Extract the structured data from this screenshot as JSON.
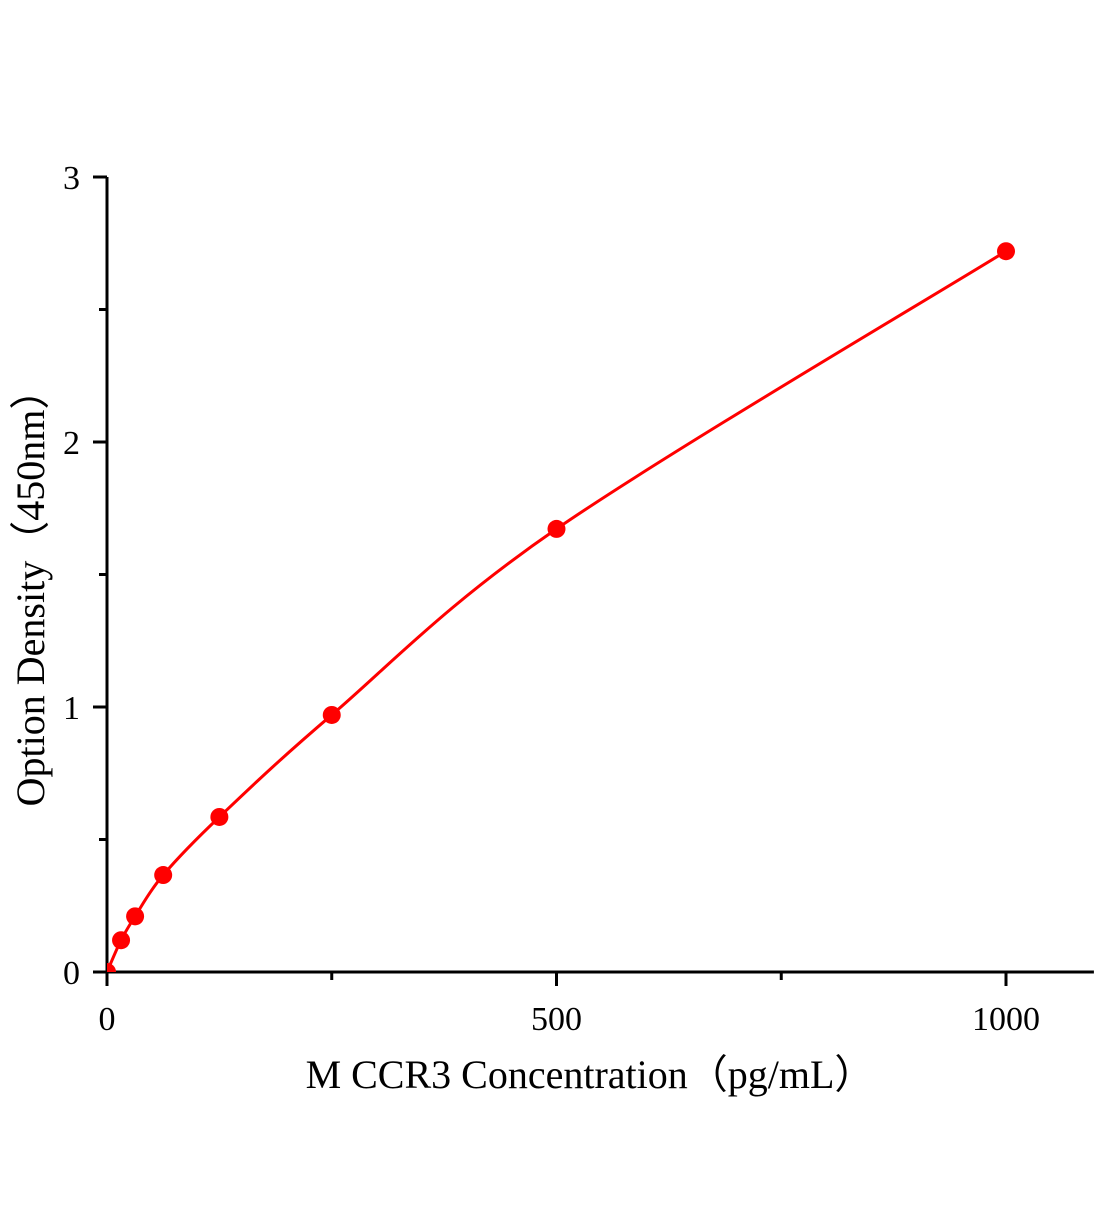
{
  "chart_data": {
    "type": "scatter",
    "title": "",
    "xlabel": "M CCR3 Concentration（pg/mL）",
    "ylabel": "Option Density（450nm）",
    "xlim": [
      0,
      1100
    ],
    "ylim": [
      0,
      3
    ],
    "x_ticks": [
      0,
      500,
      1000
    ],
    "x_tick_labels": [
      "0",
      "500",
      "1000"
    ],
    "x_minor_ticks": [
      250,
      750
    ],
    "y_ticks": [
      0,
      1,
      2,
      3
    ],
    "y_tick_labels": [
      "0",
      "1",
      "2",
      "3"
    ],
    "y_minor_ticks": [
      0.5,
      1.5,
      2.5
    ],
    "grid": false,
    "color": "#ff0000",
    "series": [
      {
        "x": [
          0,
          15.625,
          31.25,
          62.5,
          125,
          250,
          500,
          1000
        ],
        "y": [
          0,
          0.12,
          0.21,
          0.366,
          0.585,
          0.97,
          1.672,
          2.72
        ],
        "fit_line": true
      }
    ]
  }
}
